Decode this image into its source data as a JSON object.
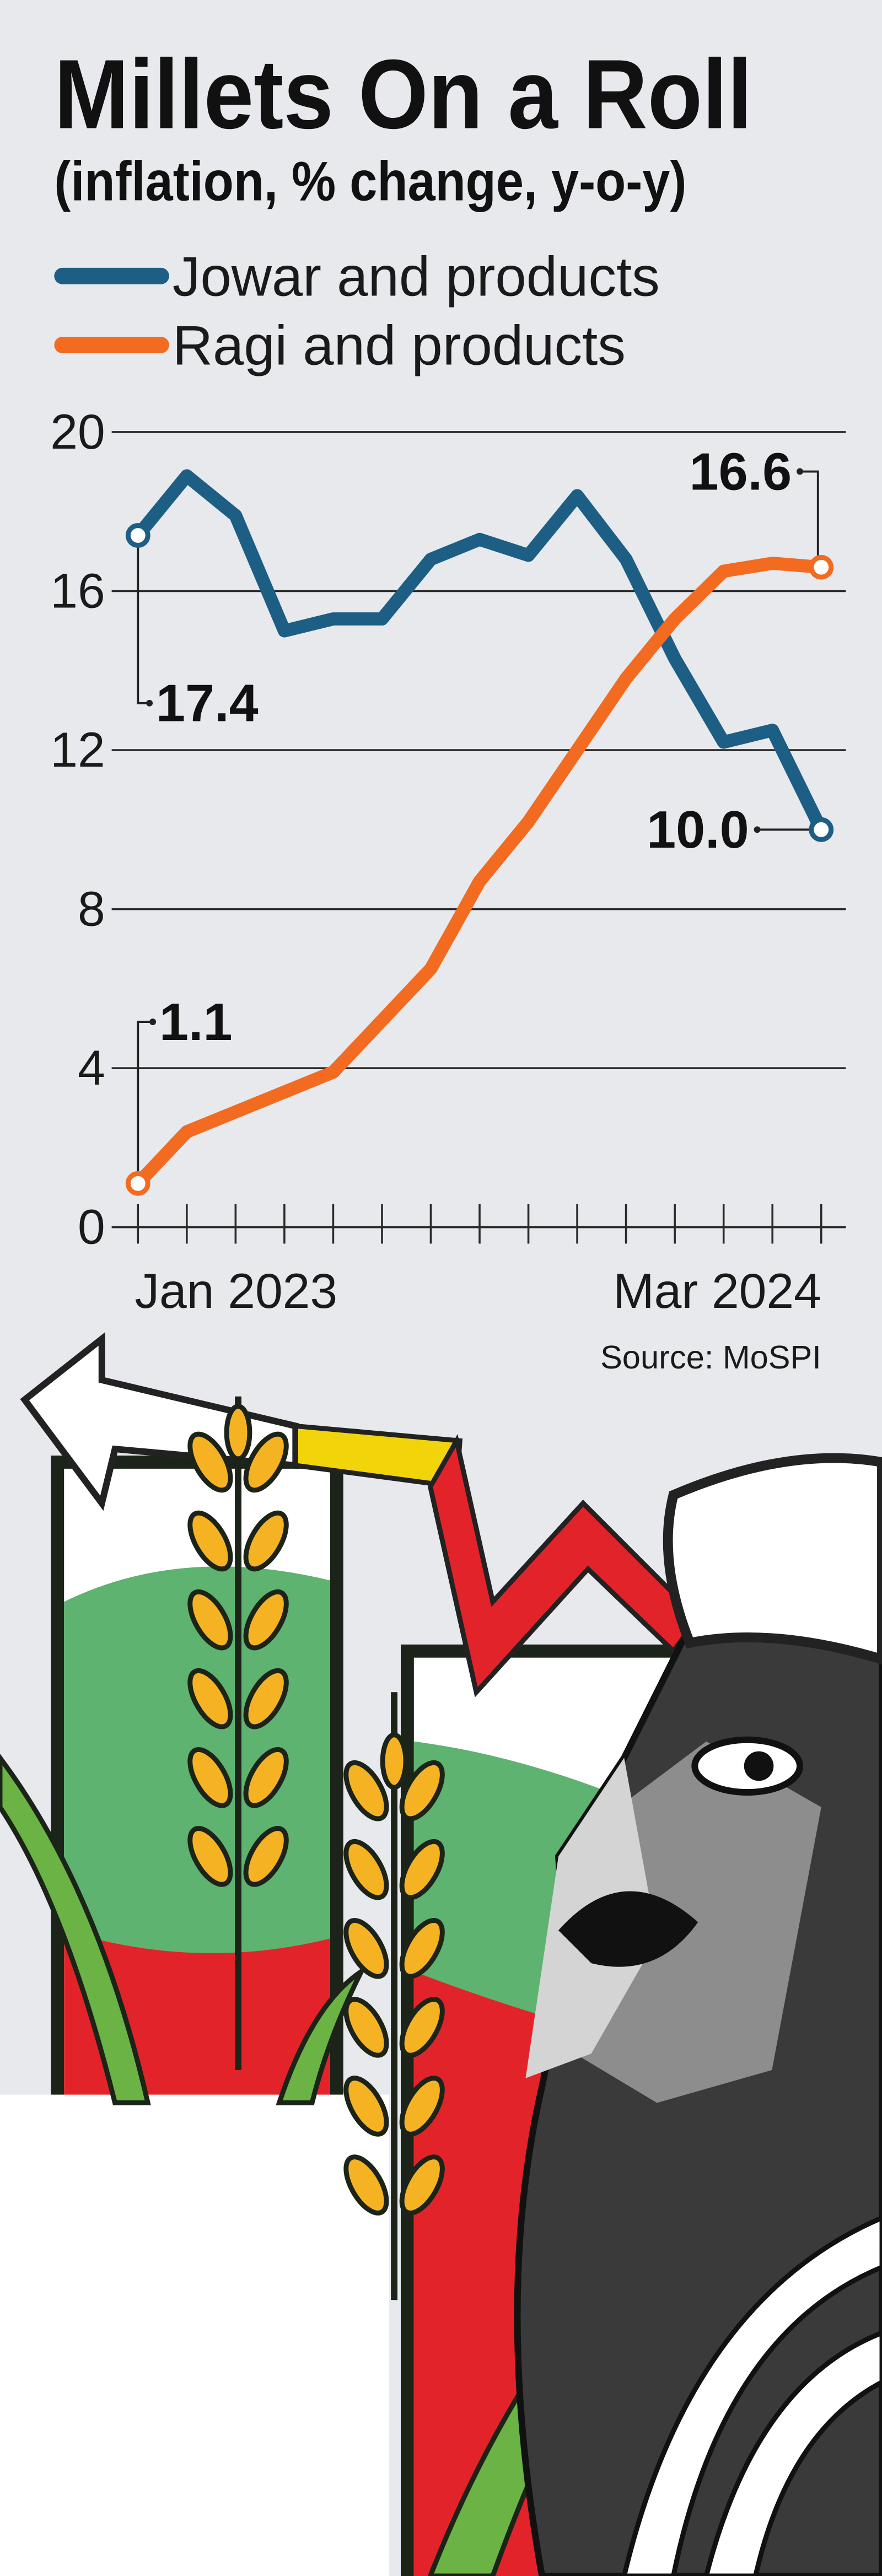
{
  "chart_data": {
    "type": "line",
    "title": "Millets On a Roll",
    "subtitle": "(inflation, % change, y-o-y)",
    "source": "Source: MoSPI",
    "categories": [
      "Jan 2023",
      null,
      null,
      null,
      null,
      null,
      null,
      null,
      null,
      null,
      null,
      null,
      null,
      null,
      "Mar 2024"
    ],
    "series": [
      {
        "name": "Jowar and products",
        "color": "#1d5e84",
        "values": [
          17.4,
          18.9,
          17.9,
          15.0,
          15.3,
          15.3,
          16.8,
          17.3,
          16.9,
          18.4,
          16.8,
          14.3,
          12.2,
          12.5,
          10.0
        ],
        "value_labels": [
          "17.4",
          null,
          null,
          null,
          null,
          null,
          null,
          null,
          null,
          null,
          null,
          null,
          null,
          null,
          "10.0"
        ]
      },
      {
        "name": "Ragi and products",
        "color": "#f26b21",
        "values": [
          1.1,
          2.4,
          2.9,
          3.4,
          3.9,
          5.2,
          6.5,
          8.7,
          10.2,
          12.0,
          13.8,
          15.3,
          16.5,
          16.7,
          16.6
        ],
        "value_labels": [
          "1.1",
          null,
          null,
          null,
          null,
          null,
          null,
          null,
          null,
          null,
          null,
          null,
          null,
          null,
          "16.6"
        ]
      }
    ],
    "ylim": [
      0,
      20
    ],
    "yticks": [
      0,
      4,
      8,
      12,
      16,
      20
    ],
    "grid": true
  }
}
